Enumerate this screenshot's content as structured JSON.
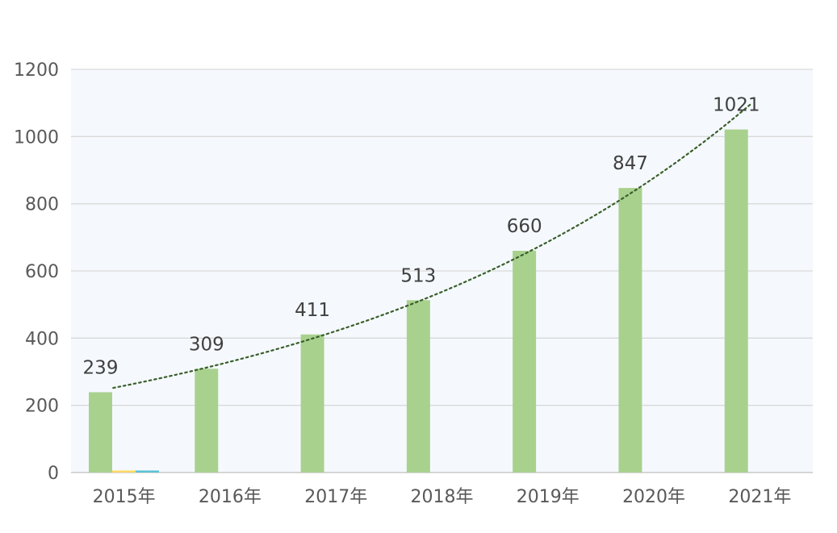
{
  "chart_data": {
    "type": "bar",
    "categories": [
      "2015年",
      "2016年",
      "2017年",
      "2018年",
      "2019年",
      "2020年",
      "2021年"
    ],
    "series": [
      {
        "values": [
          239,
          309,
          411,
          513,
          660,
          847,
          1021
        ],
        "color": "#a9d18e",
        "data_labels": true
      },
      {
        "values": [
          6,
          0,
          0,
          0,
          0,
          0,
          0
        ],
        "color": "#ffd966",
        "data_labels": false
      },
      {
        "values": [
          6,
          0,
          0,
          0,
          0,
          0,
          0
        ],
        "color": "#5bc3d4",
        "data_labels": false
      }
    ],
    "yticks": [
      0,
      200,
      400,
      600,
      800,
      1000,
      1200
    ],
    "ylim": [
      0,
      1200
    ],
    "grid": true,
    "trendline": {
      "type": "exponential",
      "series": 0,
      "style": "dotted",
      "color": "#3a5f2b"
    },
    "plot_background": "#f5f9fd",
    "gridline_color": "#d9d9d9"
  }
}
